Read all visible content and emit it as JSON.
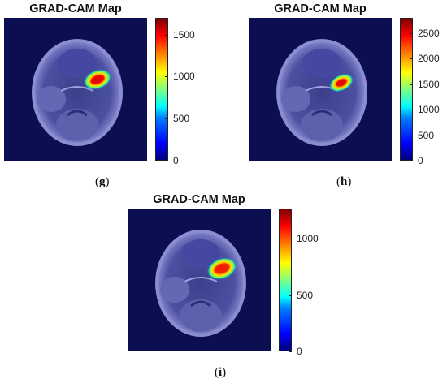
{
  "panels": [
    {
      "id": "g",
      "title": "GRAD-CAM Map",
      "label_open": "(",
      "label_letter": "g",
      "label_close": ")",
      "colorbar": {
        "min": 0,
        "max": 1700,
        "ticks": [
          "1500",
          "1000",
          "500",
          "0"
        ],
        "tick_values": [
          1500,
          1000,
          500,
          0
        ]
      }
    },
    {
      "id": "h",
      "title": "GRAD-CAM Map",
      "label_open": "(",
      "label_letter": "h",
      "label_close": ")",
      "colorbar": {
        "min": 0,
        "max": 2800,
        "ticks": [
          "2500",
          "2000",
          "1500",
          "1000",
          "500",
          "0"
        ],
        "tick_values": [
          2500,
          2000,
          1500,
          1000,
          500,
          0
        ]
      }
    },
    {
      "id": "i",
      "title": "GRAD-CAM Map",
      "label_open": "(",
      "label_letter": "i",
      "label_close": ")",
      "colorbar": {
        "min": 0,
        "max": 1270,
        "ticks": [
          "1000",
          "500",
          "0"
        ],
        "tick_values": [
          1000,
          500,
          0
        ]
      }
    }
  ],
  "colors": {
    "background": "#0b0f52",
    "hot": "#ff2a00",
    "warm": "#ffd800",
    "cool": "#00c0ff"
  }
}
